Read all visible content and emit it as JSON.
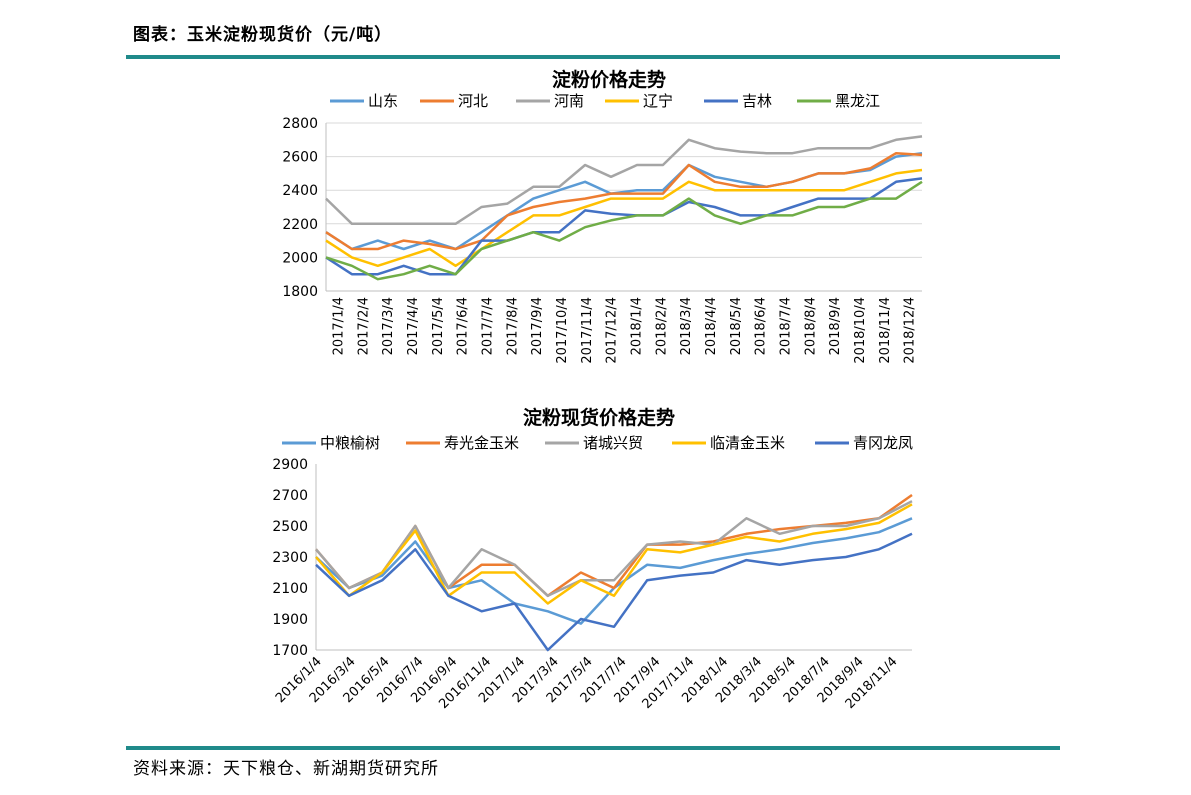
{
  "header": {
    "title": "图表：玉米淀粉现货价（元/吨）"
  },
  "footer": {
    "source": "资料来源：天下粮仓、新湖期货研究所"
  },
  "colors": {
    "rule": "#1f8a8a"
  },
  "chart_data": [
    {
      "type": "line",
      "title": "淀粉价格走势",
      "ylim": [
        1800,
        2800
      ],
      "yticks": [
        1800,
        2000,
        2200,
        2400,
        2600,
        2800
      ],
      "grid": true,
      "legend_position": "top",
      "xticks": [
        "2017/1/4",
        "2017/2/4",
        "2017/3/4",
        "2017/4/4",
        "2017/5/4",
        "2017/6/4",
        "2017/7/4",
        "2017/8/4",
        "2017/9/4",
        "2017/10/4",
        "2017/11/4",
        "2017/12/4",
        "2018/1/4",
        "2018/2/4",
        "2018/3/4",
        "2018/4/4",
        "2018/5/4",
        "2018/6/4",
        "2018/7/4",
        "2018/8/4",
        "2018/9/4",
        "2018/10/4",
        "2018/11/4",
        "2018/12/4"
      ],
      "series": [
        {
          "name": "山东",
          "color": "#5b9bd5",
          "values": [
            2150,
            2050,
            2100,
            2050,
            2100,
            2050,
            2150,
            2250,
            2350,
            2400,
            2450,
            2380,
            2400,
            2400,
            2550,
            2480,
            2450,
            2420,
            2450,
            2500,
            2500,
            2520,
            2600,
            2620
          ]
        },
        {
          "name": "河北",
          "color": "#ed7d31",
          "values": [
            2150,
            2050,
            2050,
            2100,
            2080,
            2050,
            2100,
            2250,
            2300,
            2330,
            2350,
            2380,
            2380,
            2380,
            2550,
            2450,
            2420,
            2420,
            2450,
            2500,
            2500,
            2530,
            2620,
            2610
          ]
        },
        {
          "name": "河南",
          "color": "#a5a5a5",
          "values": [
            2350,
            2200,
            2200,
            2200,
            2200,
            2200,
            2300,
            2320,
            2420,
            2420,
            2550,
            2480,
            2550,
            2550,
            2700,
            2650,
            2630,
            2620,
            2620,
            2650,
            2650,
            2650,
            2700,
            2720
          ]
        },
        {
          "name": "辽宁",
          "color": "#ffc000",
          "values": [
            2100,
            2000,
            1950,
            2000,
            2050,
            1950,
            2050,
            2150,
            2250,
            2250,
            2300,
            2350,
            2350,
            2350,
            2450,
            2400,
            2400,
            2400,
            2400,
            2400,
            2400,
            2450,
            2500,
            2520
          ]
        },
        {
          "name": "吉林",
          "color": "#4472c4",
          "values": [
            2000,
            1900,
            1900,
            1950,
            1900,
            1900,
            2100,
            2100,
            2150,
            2150,
            2280,
            2260,
            2250,
            2250,
            2330,
            2300,
            2250,
            2250,
            2300,
            2350,
            2350,
            2350,
            2450,
            2470
          ]
        },
        {
          "name": "黑龙江",
          "color": "#70ad47",
          "values": [
            2000,
            1950,
            1870,
            1900,
            1950,
            1900,
            2050,
            2100,
            2150,
            2100,
            2180,
            2220,
            2250,
            2250,
            2350,
            2250,
            2200,
            2250,
            2250,
            2300,
            2300,
            2350,
            2350,
            2450
          ]
        }
      ]
    },
    {
      "type": "line",
      "title": "淀粉现货价格走势",
      "ylim": [
        1700,
        2900
      ],
      "yticks": [
        1700,
        1900,
        2100,
        2300,
        2500,
        2700,
        2900
      ],
      "grid": false,
      "legend_position": "top",
      "xticks": [
        "2016/1/4",
        "2016/3/4",
        "2016/5/4",
        "2016/7/4",
        "2016/9/4",
        "2016/11/4",
        "2017/1/4",
        "2017/3/4",
        "2017/5/4",
        "2017/7/4",
        "2017/9/4",
        "2017/11/4",
        "2018/1/4",
        "2018/3/4",
        "2018/5/4",
        "2018/7/4",
        "2018/9/4",
        "2018/11/4"
      ],
      "series": [
        {
          "name": "中粮榆树",
          "color": "#5b9bd5",
          "values": [
            2300,
            2100,
            2180,
            2400,
            2100,
            2150,
            2000,
            1950,
            1870,
            2100,
            2250,
            2230,
            2280,
            2320,
            2350,
            2390,
            2420,
            2460,
            2550
          ]
        },
        {
          "name": "寿光金玉米",
          "color": "#ed7d31",
          "values": [
            2350,
            2100,
            2200,
            2500,
            2100,
            2250,
            2250,
            2050,
            2200,
            2100,
            2380,
            2380,
            2400,
            2450,
            2480,
            2500,
            2520,
            2550,
            2700
          ]
        },
        {
          "name": "诸城兴贸",
          "color": "#a5a5a5",
          "values": [
            2350,
            2100,
            2200,
            2500,
            2100,
            2350,
            2250,
            2050,
            2150,
            2150,
            2380,
            2400,
            2380,
            2550,
            2450,
            2500,
            2500,
            2550,
            2660
          ]
        },
        {
          "name": "临清金玉米",
          "color": "#ffc000",
          "values": [
            2300,
            2050,
            2200,
            2470,
            2050,
            2200,
            2200,
            2000,
            2150,
            2050,
            2350,
            2330,
            2380,
            2430,
            2400,
            2450,
            2480,
            2520,
            2640
          ]
        },
        {
          "name": "青冈龙凤",
          "color": "#4472c4",
          "values": [
            2250,
            2050,
            2150,
            2350,
            2050,
            1950,
            2000,
            1700,
            1900,
            1850,
            2150,
            2180,
            2200,
            2280,
            2250,
            2280,
            2300,
            2350,
            2450
          ]
        }
      ]
    }
  ]
}
